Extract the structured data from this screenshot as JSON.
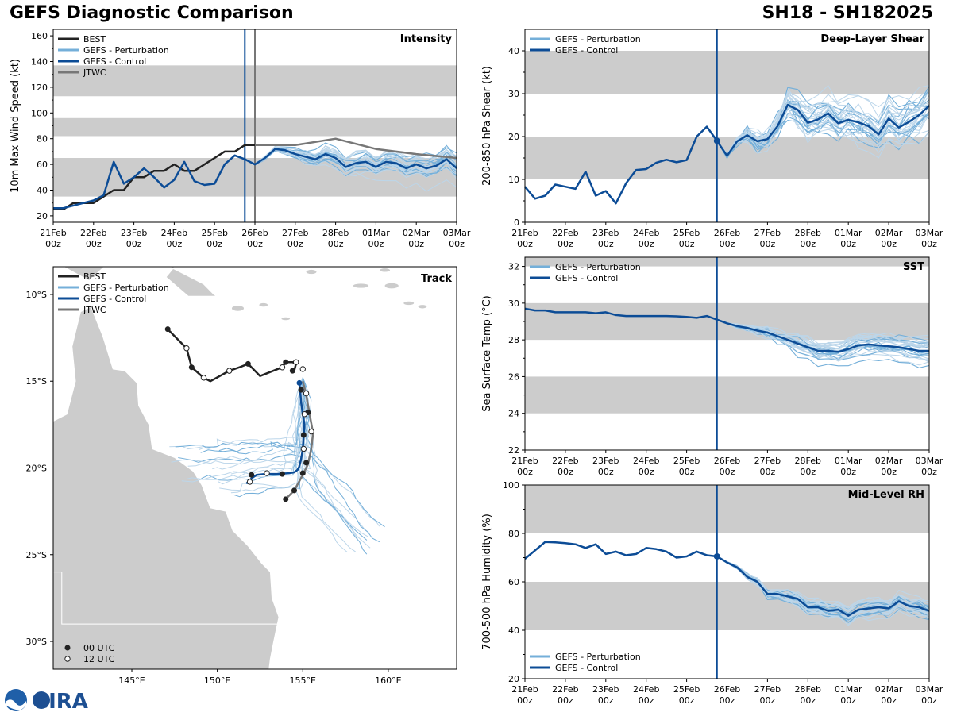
{
  "header": {
    "title_left": "GEFS Diagnostic Comparison",
    "title_right": "SH18 - SH182025"
  },
  "colors": {
    "best": "#222222",
    "pert": "#74afd9",
    "pert_light": "#bcd6ea",
    "control": "#0c4c96",
    "jtwc": "#777777",
    "band": "#cccccc",
    "land": "#cccccc"
  },
  "time_axis": {
    "days": [
      0,
      1,
      2,
      3,
      4,
      5,
      6,
      7,
      8,
      9,
      10
    ],
    "labels": [
      "21Feb",
      "22Feb",
      "23Feb",
      "24Feb",
      "25Feb",
      "26Feb",
      "27Feb",
      "28Feb",
      "01Mar",
      "02Mar",
      "03Mar"
    ],
    "sublabel": "00z",
    "init_day": 4.75
  },
  "legend": {
    "best": "BEST",
    "pert": "GEFS - Perturbation",
    "control": "GEFS - Control",
    "jtwc": "JTWC",
    "utc00": "00 UTC",
    "utc12": "12 UTC"
  },
  "logo_text": "CIRA",
  "chart_data": [
    {
      "id": "intensity",
      "type": "line",
      "title": "Intensity",
      "ylabel": "10m Max Wind Speed (kt)",
      "ylim": [
        15,
        165
      ],
      "yticks": [
        20,
        40,
        60,
        80,
        100,
        120,
        140,
        160
      ],
      "bands": [
        [
          35,
          65
        ],
        [
          82,
          96
        ],
        [
          113,
          137
        ]
      ],
      "jtwc_init_day": 5.0,
      "best": {
        "x": [
          0,
          0.25,
          0.5,
          0.75,
          1,
          1.25,
          1.5,
          1.75,
          2,
          2.25,
          2.5,
          2.75,
          3,
          3.25,
          3.5,
          3.75,
          4,
          4.25,
          4.5,
          4.75,
          5
        ],
        "y": [
          25,
          25,
          30,
          30,
          30,
          35,
          40,
          40,
          50,
          50,
          55,
          55,
          60,
          55,
          55,
          60,
          65,
          70,
          70,
          75,
          75
        ]
      },
      "control": {
        "x": [
          0,
          0.25,
          0.5,
          0.75,
          1,
          1.25,
          1.5,
          1.75,
          2,
          2.25,
          2.5,
          2.75,
          3,
          3.25,
          3.5,
          3.75,
          4,
          4.25,
          4.5,
          4.75,
          5,
          5.25,
          5.5,
          5.75,
          6,
          6.25,
          6.5,
          6.75,
          7,
          7.25,
          7.5,
          7.75,
          8,
          8.25,
          8.5,
          8.75,
          9,
          9.25,
          9.5,
          9.75,
          10
        ],
        "y": [
          26,
          26,
          28,
          30,
          32,
          36,
          62,
          45,
          50,
          57,
          50,
          42,
          48,
          62,
          47,
          44,
          45,
          60,
          67,
          64,
          60,
          65,
          72,
          71,
          68,
          66,
          64,
          68,
          65,
          58,
          61,
          62,
          58,
          62,
          61,
          57,
          60,
          57,
          59,
          64,
          57
        ]
      },
      "jtwc": {
        "x": [
          4.75,
          5,
          6,
          7,
          8,
          9,
          10
        ],
        "y": [
          75,
          75,
          75,
          80,
          72,
          68,
          65
        ]
      }
    },
    {
      "id": "shear",
      "type": "line",
      "title": "Deep-Layer Shear",
      "ylabel": "200-850 hPa Shear (kt)",
      "ylim": [
        0,
        45
      ],
      "yticks": [
        0,
        10,
        20,
        30,
        40
      ],
      "bands": [
        [
          10,
          20
        ],
        [
          30,
          40
        ]
      ],
      "control": {
        "x": [
          0,
          0.25,
          0.5,
          0.75,
          1,
          1.25,
          1.5,
          1.75,
          2,
          2.25,
          2.5,
          2.75,
          3,
          3.25,
          3.5,
          3.75,
          4,
          4.25,
          4.5,
          4.75,
          5,
          5.25,
          5.5,
          5.75,
          6,
          6.25,
          6.5,
          6.75,
          7,
          7.25,
          7.5,
          7.75,
          8,
          8.25,
          8.5,
          8.75,
          9,
          9.25,
          9.5,
          9.75,
          10
        ],
        "y": [
          8.3,
          5.5,
          6.2,
          8.8,
          8.3,
          7.8,
          11.8,
          6.2,
          7.3,
          4.4,
          9.1,
          12.2,
          12.4,
          13.9,
          14.6,
          14.0,
          14.5,
          20.0,
          22.3,
          19.0,
          15.5,
          18.9,
          20.3,
          18.9,
          19.4,
          22.4,
          27.4,
          26.2,
          23.2,
          24.0,
          25.4,
          23.1,
          23.9,
          23.3,
          22.4,
          20.5,
          24.2,
          22.1,
          23.4,
          25.0,
          27.2
        ]
      }
    },
    {
      "id": "sst",
      "type": "line",
      "title": "SST",
      "ylabel": "Sea Surface Temp (°C)",
      "ylim": [
        22,
        32.5
      ],
      "yticks": [
        22,
        24,
        26,
        28,
        30,
        32
      ],
      "bands": [
        [
          24,
          26
        ],
        [
          28,
          30
        ],
        [
          32,
          32.5
        ]
      ],
      "control": {
        "x": [
          0,
          0.25,
          0.5,
          0.75,
          1,
          1.25,
          1.5,
          1.75,
          2,
          2.25,
          2.5,
          2.75,
          3,
          3.25,
          3.5,
          3.75,
          4,
          4.25,
          4.5,
          4.75,
          5,
          5.25,
          5.5,
          5.75,
          6,
          6.25,
          6.5,
          6.75,
          7,
          7.25,
          7.5,
          7.75,
          8,
          8.25,
          8.5,
          8.75,
          9,
          9.25,
          9.5,
          9.75,
          10
        ],
        "y": [
          29.7,
          29.6,
          29.6,
          29.5,
          29.5,
          29.5,
          29.5,
          29.45,
          29.5,
          29.35,
          29.3,
          29.3,
          29.3,
          29.3,
          29.3,
          29.28,
          29.25,
          29.2,
          29.3,
          29.1,
          28.9,
          28.75,
          28.65,
          28.5,
          28.4,
          28.2,
          28.0,
          27.8,
          27.6,
          27.4,
          27.4,
          27.35,
          27.5,
          27.7,
          27.75,
          27.7,
          27.65,
          27.6,
          27.5,
          27.4,
          27.4
        ]
      }
    },
    {
      "id": "rh",
      "type": "line",
      "title": "Mid-Level RH",
      "ylabel": "700-500 hPa Humidity (%)",
      "ylim": [
        20,
        100
      ],
      "yticks": [
        20,
        40,
        60,
        80,
        100
      ],
      "bands": [
        [
          40,
          60
        ],
        [
          80,
          100
        ]
      ],
      "control": {
        "x": [
          0,
          0.25,
          0.5,
          0.75,
          1,
          1.25,
          1.5,
          1.75,
          2,
          2.25,
          2.5,
          2.75,
          3,
          3.25,
          3.5,
          3.75,
          4,
          4.25,
          4.5,
          4.75,
          5,
          5.25,
          5.5,
          5.75,
          6,
          6.25,
          6.5,
          6.75,
          7,
          7.25,
          7.5,
          7.75,
          8,
          8.25,
          8.5,
          8.75,
          9,
          9.25,
          9.5,
          9.75,
          10
        ],
        "y": [
          69.5,
          73,
          76.5,
          76.3,
          76,
          75.5,
          74,
          75.5,
          71.5,
          72.5,
          71,
          71.5,
          74,
          73.5,
          72.5,
          70,
          70.5,
          72.5,
          71,
          70.5,
          68,
          66,
          62,
          60,
          55,
          55,
          54,
          53,
          49.5,
          49.5,
          48,
          48.5,
          46,
          48.5,
          49,
          49.5,
          49,
          52,
          50,
          49.5,
          48
        ]
      }
    },
    {
      "id": "track",
      "type": "map",
      "title": "Track",
      "lon_ticks": [
        "145°E",
        "150°E",
        "155°E",
        "160°E"
      ],
      "lat_ticks": [
        "10°S",
        "15°S",
        "20°S",
        "25°S",
        "30°S"
      ],
      "best": {
        "lon": [
          147.1,
          148.2,
          148.5,
          149.2,
          149.6,
          150.7,
          151.3,
          151.8,
          152.5,
          153.8,
          154.0,
          154.4,
          154.6,
          154.5
        ],
        "lat": [
          12.0,
          13.1,
          14.2,
          14.8,
          15.0,
          14.4,
          14.2,
          14.0,
          14.7,
          14.2,
          13.9,
          13.9,
          14.0,
          14.4
        ]
      },
      "control": {
        "lon": [
          154.8,
          154.85,
          154.9,
          155.0,
          155.1,
          155.05,
          155.0,
          154.9,
          154.8,
          154.7,
          154.5,
          154.2,
          153.5,
          152.8,
          152.3,
          152.0,
          151.7
        ],
        "lat": [
          15.1,
          15.6,
          16.2,
          16.9,
          17.5,
          18.2,
          18.9,
          19.5,
          19.9,
          20.1,
          20.25,
          20.3,
          20.35,
          20.35,
          20.4,
          20.6,
          20.9
        ]
      },
      "jtwc": {
        "lon": [
          155.0,
          155.2,
          155.4,
          155.6,
          155.5,
          155.3,
          155.0,
          154.5,
          154.0
        ],
        "lat": [
          15.0,
          15.8,
          16.9,
          18.0,
          18.9,
          19.8,
          20.4,
          21.3,
          21.8
        ]
      },
      "dots00": {
        "lon": [
          147.1,
          148.5,
          151.8,
          154.0,
          154.4,
          154.9,
          155.3,
          155.05,
          155.2,
          155.0,
          154.5,
          153.8,
          152.0,
          154.0
        ],
        "lat": [
          12.0,
          14.2,
          14.0,
          13.9,
          14.4,
          15.5,
          16.8,
          18.1,
          19.7,
          20.3,
          21.3,
          20.35,
          20.4,
          21.8
        ]
      },
      "dots12": {
        "lon": [
          148.2,
          149.2,
          150.7,
          153.8,
          154.6,
          155.0,
          155.2,
          155.1,
          155.5,
          155.05,
          152.9,
          151.9
        ],
        "lat": [
          13.1,
          14.8,
          14.4,
          14.2,
          13.9,
          14.3,
          15.7,
          16.9,
          17.9,
          18.9,
          20.3,
          20.8
        ]
      }
    }
  ]
}
